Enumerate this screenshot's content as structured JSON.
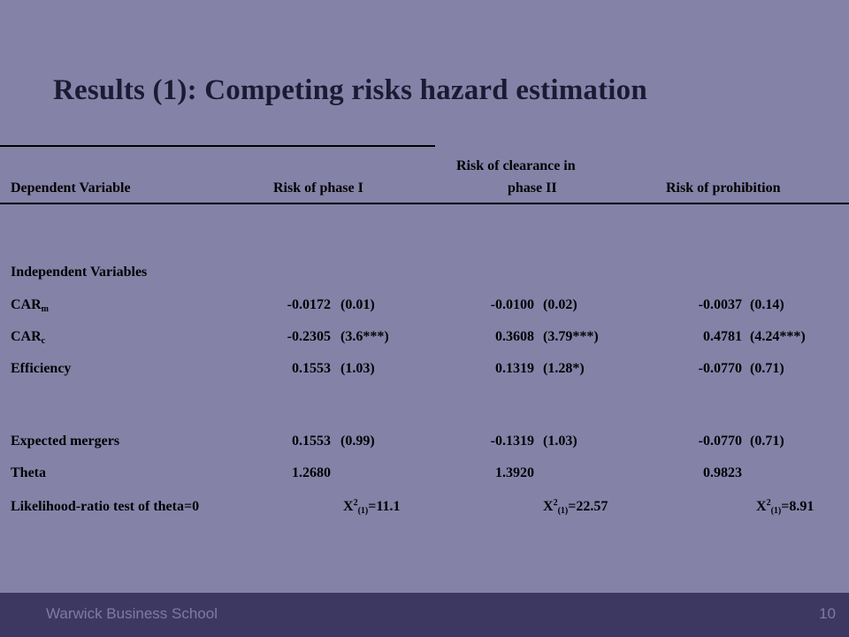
{
  "title": "Results (1): Competing risks hazard estimation",
  "headers": {
    "dependent": "Dependent Variable",
    "col1": "Risk of  phase I",
    "col2_line1": "Risk of  clearance in",
    "col2_line2": "phase II",
    "col3": "Risk of  prohibition"
  },
  "section_label": "Independent Variables",
  "rows": [
    {
      "label": "CAR",
      "sub": "m",
      "v1": "-0.0172",
      "p1": "(0.01)",
      "v2": "-0.0100",
      "p2": "(0.02)",
      "v3": "-0.0037",
      "p3": "(0.14)"
    },
    {
      "label": "CAR",
      "sub": "c",
      "v1": "-0.2305",
      "p1": "(3.6***)",
      "v2": "0.3608",
      "p2": "(3.79***)",
      "v3": "0.4781",
      "p3": "(4.24***)"
    },
    {
      "label": "Efficiency",
      "sub": "",
      "v1": "0.1553",
      "p1": "(1.03)",
      "v2": "0.1319",
      "p2": "(1.28*)",
      "v3": "-0.0770",
      "p3": "(0.71)"
    },
    {
      "label": "Expected mergers",
      "sub": "",
      "v1": "0.1553",
      "p1": "(0.99)",
      "v2": "-0.1319",
      "p2": "(1.03)",
      "v3": "-0.0770",
      "p3": "(0.71)"
    },
    {
      "label": "Theta",
      "sub": "",
      "v1": "1.2680",
      "p1": "",
      "v2": "1.3920",
      "p2": "",
      "v3": "0.9823",
      "p3": ""
    }
  ],
  "lr_test": {
    "label": "Likelihood-ratio test of theta=0",
    "chi_base": "X",
    "chi_sup": "2",
    "chi_sub": "(1)",
    "v1": "=11.1",
    "v2": "=22.57",
    "v3": "=8.91"
  },
  "footer": {
    "text": "Warwick Business School",
    "page": "10"
  }
}
